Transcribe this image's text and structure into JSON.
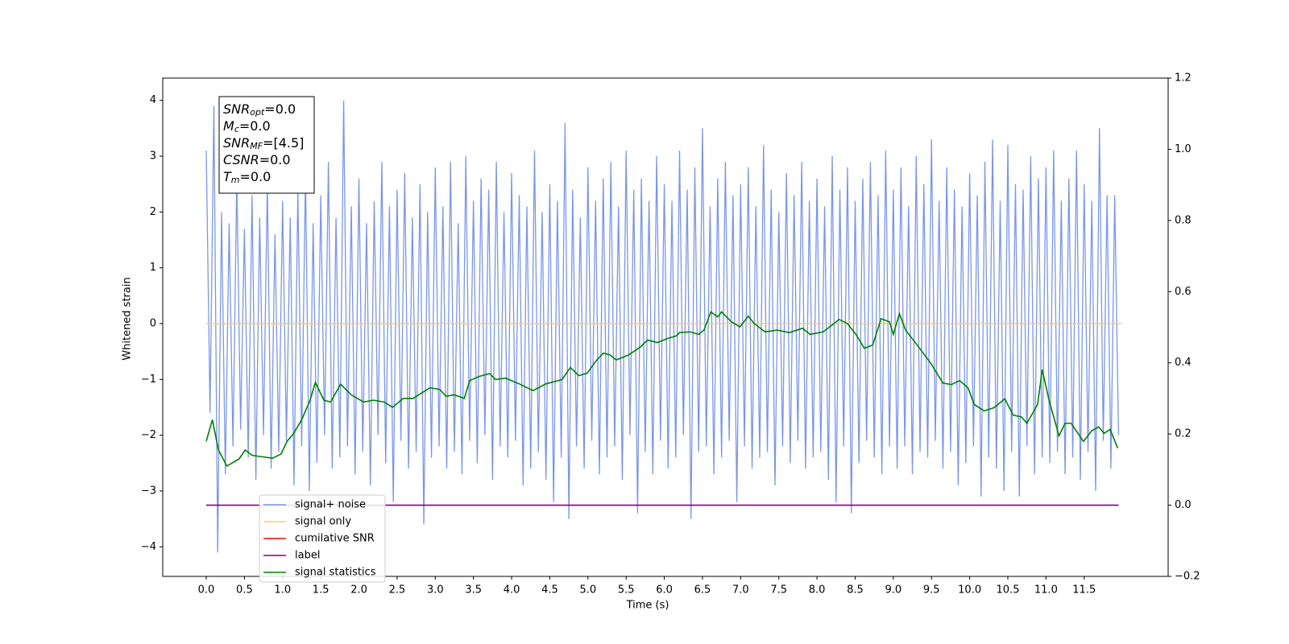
{
  "chart_data": {
    "type": "line",
    "xlabel": "Time (s)",
    "ylabel": "Whitened strain",
    "xlim": [
      -0.57,
      12.6
    ],
    "ylim": [
      -4.53,
      4.4
    ],
    "y2lim": [
      -0.2,
      1.2
    ],
    "xticks": [
      {
        "value": 0,
        "label": "0.0"
      },
      {
        "value": 0.5,
        "label": "0.5"
      },
      {
        "value": 1,
        "label": "1.0"
      },
      {
        "value": 1.5,
        "label": "1.5"
      },
      {
        "value": 2,
        "label": "2.0"
      },
      {
        "value": 2.5,
        "label": "2.5"
      },
      {
        "value": 3,
        "label": "3.0"
      },
      {
        "value": 3.5,
        "label": "3.5"
      },
      {
        "value": 4,
        "label": "4.0"
      },
      {
        "value": 4.5,
        "label": "4.5"
      },
      {
        "value": 5,
        "label": "5.0"
      },
      {
        "value": 5.5,
        "label": "5.5"
      },
      {
        "value": 6,
        "label": "6.0"
      },
      {
        "value": 6.5,
        "label": "6.5"
      },
      {
        "value": 7,
        "label": "7.0"
      },
      {
        "value": 7.5,
        "label": "7.5"
      },
      {
        "value": 8,
        "label": "8.0"
      },
      {
        "value": 8.5,
        "label": "8.5"
      },
      {
        "value": 9,
        "label": "9.0"
      },
      {
        "value": 9.5,
        "label": "9.5"
      },
      {
        "value": 10,
        "label": "10.0"
      },
      {
        "value": 10.5,
        "label": "10.5"
      },
      {
        "value": 11,
        "label": "11.0"
      },
      {
        "value": 11.5,
        "label": "11.5"
      }
    ],
    "yticks": [
      {
        "value": -4,
        "label": "−4"
      },
      {
        "value": -3,
        "label": "−3"
      },
      {
        "value": -2,
        "label": "−2"
      },
      {
        "value": -1,
        "label": "−1"
      },
      0,
      1,
      2,
      3,
      4
    ],
    "y2ticks": [
      {
        "value": -0.2,
        "label": "−0.2"
      },
      {
        "value": 0,
        "label": "0.0"
      },
      0.2,
      0.4,
      0.6,
      0.8,
      {
        "value": 1,
        "label": "1.0"
      },
      1.2
    ],
    "annotation": [
      {
        "base": "SNR",
        "sub": "opt",
        "rest": "=0.0"
      },
      {
        "base": "M",
        "sub": "c",
        "rest": "=0.0"
      },
      {
        "base": "SNR",
        "sub": "MF",
        "rest": "=[4.5]"
      },
      {
        "base": "CSNR",
        "rest": "=0.0"
      },
      {
        "base": "T",
        "sub": "m",
        "rest": "=0.0"
      }
    ],
    "series": [
      {
        "name": "signal+ noise",
        "color": "#7a96e9",
        "x": [
          0,
          0.05,
          0.1,
          0.15,
          0.2,
          0.25,
          0.3,
          0.35,
          0.4,
          0.45,
          0.5,
          0.55,
          0.6,
          0.65,
          0.7,
          0.75,
          0.8,
          0.85,
          0.9,
          0.95,
          1,
          1.05,
          1.1,
          1.15,
          1.2,
          1.25,
          1.3,
          1.35,
          1.4,
          1.45,
          1.5,
          1.55,
          1.6,
          1.65,
          1.7,
          1.75,
          1.8,
          1.85,
          1.9,
          1.95,
          2,
          2.05,
          2.1,
          2.15,
          2.2,
          2.25,
          2.3,
          2.35,
          2.4,
          2.45,
          2.5,
          2.55,
          2.6,
          2.65,
          2.7,
          2.75,
          2.8,
          2.85,
          2.9,
          2.95,
          3,
          3.05,
          3.1,
          3.15,
          3.2,
          3.25,
          3.3,
          3.35,
          3.4,
          3.45,
          3.5,
          3.55,
          3.6,
          3.65,
          3.7,
          3.75,
          3.8,
          3.85,
          3.9,
          3.95,
          4,
          4.05,
          4.1,
          4.15,
          4.2,
          4.25,
          4.3,
          4.35,
          4.4,
          4.45,
          4.5,
          4.55,
          4.6,
          4.65,
          4.7,
          4.75,
          4.8,
          4.85,
          4.9,
          4.95,
          5,
          5.05,
          5.1,
          5.15,
          5.2,
          5.25,
          5.3,
          5.35,
          5.4,
          5.45,
          5.5,
          5.55,
          5.6,
          5.65,
          5.7,
          5.75,
          5.8,
          5.85,
          5.9,
          5.95,
          6,
          6.05,
          6.1,
          6.15,
          6.2,
          6.25,
          6.3,
          6.35,
          6.4,
          6.45,
          6.5,
          6.55,
          6.6,
          6.65,
          6.7,
          6.75,
          6.8,
          6.85,
          6.9,
          6.95,
          7,
          7.05,
          7.1,
          7.15,
          7.2,
          7.25,
          7.3,
          7.35,
          7.4,
          7.45,
          7.5,
          7.55,
          7.6,
          7.65,
          7.7,
          7.75,
          7.8,
          7.85,
          7.9,
          7.95,
          8,
          8.05,
          8.1,
          8.15,
          8.2,
          8.25,
          8.3,
          8.35,
          8.4,
          8.45,
          8.5,
          8.55,
          8.6,
          8.65,
          8.7,
          8.75,
          8.8,
          8.85,
          8.9,
          8.95,
          9,
          9.05,
          9.1,
          9.15,
          9.2,
          9.25,
          9.3,
          9.35,
          9.4,
          9.45,
          9.5,
          9.55,
          9.6,
          9.65,
          9.7,
          9.75,
          9.8,
          9.85,
          9.9,
          9.95,
          10,
          10.05,
          10.1,
          10.15,
          10.2,
          10.25,
          10.3,
          10.35,
          10.4,
          10.45,
          10.5,
          10.55,
          10.6,
          10.65,
          10.7,
          10.75,
          10.8,
          10.85,
          10.9,
          10.95,
          11,
          11.05,
          11.1,
          11.15,
          11.2,
          11.25,
          11.3,
          11.35,
          11.4,
          11.45,
          11.5,
          11.55,
          11.6,
          11.65,
          11.7,
          11.75,
          11.8,
          11.85,
          11.9,
          11.95
        ],
        "values": [
          3.1,
          -1.6,
          3.9,
          -4.1,
          2.0,
          -2.7,
          1.8,
          -2.2,
          2.6,
          -1.9,
          1.7,
          -2.4,
          2.3,
          -2.8,
          1.9,
          -2.0,
          2.5,
          -2.6,
          1.6,
          -2.3,
          2.2,
          -2.1,
          1.9,
          -2.9,
          2.4,
          -2.2,
          2.7,
          -3.0,
          1.8,
          -2.5,
          2.3,
          -2.0,
          2.9,
          -2.6,
          1.9,
          -2.4,
          4.0,
          -2.2,
          2.1,
          -2.7,
          2.6,
          -2.3,
          1.8,
          -2.9,
          2.2,
          -2.0,
          2.9,
          -2.5,
          2.1,
          -3.2,
          2.4,
          -2.1,
          2.7,
          -2.6,
          1.9,
          -2.3,
          2.5,
          -3.6,
          2.0,
          -2.4,
          2.8,
          -2.2,
          2.1,
          -2.6,
          2.9,
          -2.3,
          1.8,
          -2.7,
          3.0,
          -2.1,
          2.2,
          -2.5,
          2.6,
          -2.0,
          2.4,
          -2.8,
          2.9,
          -2.2,
          2.0,
          -2.4,
          2.7,
          -2.1,
          2.3,
          -2.9,
          2.1,
          -2.6,
          3.1,
          -2.3,
          2.0,
          -2.8,
          2.5,
          -3.2,
          2.2,
          -2.4,
          3.6,
          -3.5,
          2.4,
          -2.2,
          1.9,
          -2.6,
          2.8,
          -2.1,
          2.2,
          -2.7,
          2.6,
          -2.4,
          2.9,
          -2.2,
          2.1,
          -2.8,
          3.1,
          -2.0,
          2.4,
          -3.4,
          2.6,
          -2.3,
          2.2,
          -2.7,
          3.0,
          -2.1,
          2.5,
          -2.6,
          2.2,
          -2.4,
          3.1,
          -2.0,
          2.4,
          -3.5,
          2.8,
          -2.3,
          3.5,
          -2.2,
          2.1,
          -2.7,
          2.6,
          -2.4,
          2.9,
          -2.1,
          2.3,
          -3.2,
          2.5,
          -2.2,
          2.8,
          -2.6,
          2.1,
          -2.4,
          3.2,
          -2.3,
          2.4,
          -2.9,
          2.0,
          -2.2,
          2.7,
          -2.5,
          2.3,
          -2.1,
          2.9,
          -2.6,
          2.2,
          -2.4,
          2.6,
          -2.3,
          2.1,
          -2.8,
          3.0,
          -3.2,
          2.4,
          -2.2,
          2.8,
          -3.4,
          2.2,
          -2.5,
          2.6,
          -2.1,
          2.9,
          -2.4,
          2.3,
          -2.7,
          3.1,
          -2.2,
          2.4,
          -2.6,
          2.8,
          -2.2,
          2.1,
          -2.7,
          3.0,
          -2.3,
          2.5,
          -2.4,
          3.3,
          -2.1,
          2.2,
          -2.6,
          2.8,
          -2.3,
          2.4,
          -2.9,
          2.1,
          -2.5,
          2.7,
          -2.2,
          2.3,
          -3.1,
          2.9,
          -2.4,
          3.3,
          -2.6,
          2.2,
          -3.0,
          3.2,
          -2.3,
          2.5,
          -3.1,
          2.4,
          -2.2,
          3.0,
          -2.7,
          2.6,
          -2.4,
          2.8,
          -2.5,
          3.1,
          -2.3,
          2.2,
          -2.7,
          2.6,
          -2.4,
          3.1,
          -2.8,
          2.5,
          -2.3,
          2.2,
          -3.0,
          3.5,
          -2.1,
          2.3,
          -2.6,
          2.3,
          -2.0
        ]
      },
      {
        "name": "signal only",
        "color": "#ffc870",
        "x": [
          0,
          11.99
        ],
        "values": [
          0,
          0
        ]
      },
      {
        "name": "cumilative SNR",
        "color": "#ff0000",
        "x": [],
        "values": []
      },
      {
        "name": "label",
        "color": "#800080",
        "axis": "y2",
        "x": [
          0,
          11.95
        ],
        "values": [
          0,
          0
        ]
      },
      {
        "name": "signal statistics",
        "color": "#008000",
        "axis": "y2",
        "x": [
          0,
          0.08,
          0.16,
          0.27,
          0.43,
          0.51,
          0.6,
          0.7,
          0.87,
          0.98,
          1.06,
          1.14,
          1.25,
          1.36,
          1.43,
          1.54,
          1.63,
          1.76,
          1.9,
          2.06,
          2.19,
          2.33,
          2.44,
          2.58,
          2.71,
          2.82,
          2.93,
          3.06,
          3.14,
          3.25,
          3.38,
          3.45,
          3.58,
          3.71,
          3.79,
          3.92,
          4.1,
          4.28,
          4.45,
          4.66,
          4.77,
          4.88,
          4.99,
          5.1,
          5.2,
          5.29,
          5.37,
          5.53,
          5.69,
          5.78,
          5.91,
          6.05,
          6.16,
          6.2,
          6.34,
          6.45,
          6.52,
          6.61,
          6.7,
          6.75,
          6.88,
          6.99,
          7.1,
          7.18,
          7.32,
          7.48,
          7.64,
          7.81,
          7.91,
          8.08,
          8.18,
          8.29,
          8.4,
          8.51,
          8.62,
          8.73,
          8.84,
          8.95,
          9,
          9.08,
          9.16,
          9.33,
          9.49,
          9.57,
          9.65,
          9.76,
          9.87,
          9.98,
          10.06,
          10.19,
          10.32,
          10.46,
          10.57,
          10.68,
          10.75,
          10.89,
          10.95,
          11.04,
          11.17,
          11.25,
          11.33,
          11.49,
          11.6,
          11.69,
          11.76,
          11.84,
          11.94
        ],
        "values": [
          0.18,
          0.24,
          0.155,
          0.11,
          0.13,
          0.155,
          0.14,
          0.137,
          0.132,
          0.144,
          0.18,
          0.2,
          0.24,
          0.295,
          0.345,
          0.295,
          0.29,
          0.34,
          0.31,
          0.29,
          0.295,
          0.29,
          0.275,
          0.3,
          0.3,
          0.315,
          0.33,
          0.325,
          0.306,
          0.31,
          0.3,
          0.35,
          0.362,
          0.37,
          0.353,
          0.357,
          0.341,
          0.322,
          0.341,
          0.353,
          0.387,
          0.364,
          0.371,
          0.404,
          0.427,
          0.422,
          0.408,
          0.422,
          0.445,
          0.464,
          0.457,
          0.469,
          0.476,
          0.485,
          0.487,
          0.48,
          0.492,
          0.543,
          0.529,
          0.543,
          0.515,
          0.501,
          0.531,
          0.51,
          0.487,
          0.492,
          0.485,
          0.497,
          0.48,
          0.487,
          0.503,
          0.522,
          0.51,
          0.48,
          0.441,
          0.45,
          0.524,
          0.515,
          0.48,
          0.538,
          0.492,
          0.445,
          0.399,
          0.371,
          0.343,
          0.339,
          0.35,
          0.329,
          0.283,
          0.265,
          0.274,
          0.299,
          0.253,
          0.248,
          0.23,
          0.283,
          0.381,
          0.295,
          0.195,
          0.23,
          0.23,
          0.179,
          0.209,
          0.22,
          0.202,
          0.213,
          0.16
        ]
      }
    ]
  }
}
